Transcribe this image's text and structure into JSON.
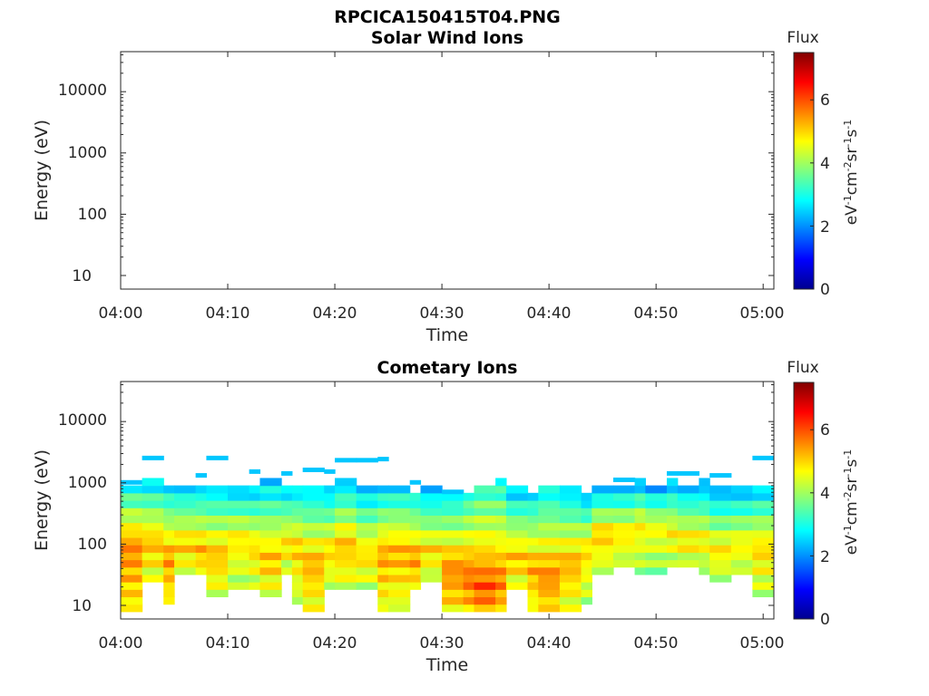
{
  "figure": {
    "title": "RPCICA150415T04.PNG"
  },
  "chart_data": [
    {
      "type": "heatmap",
      "title": "Solar Wind Ions",
      "xlabel": "Time",
      "ylabel": "Energy (eV)",
      "x_ticks": [
        "04:00",
        "04:10",
        "04:20",
        "04:30",
        "04:40",
        "04:50",
        "05:00"
      ],
      "y_ticks": [
        "10",
        "100",
        "1000",
        "10000"
      ],
      "y_scale": "log",
      "x_range": [
        "04:00",
        "05:01"
      ],
      "y_range": [
        6,
        45000
      ],
      "colorbar": {
        "label": "Flux",
        "unit": "eV-1cm-2sr-1s-1",
        "range": [
          0,
          7.5
        ],
        "ticks": [
          "0",
          "2",
          "4",
          "6"
        ],
        "colormap": "jet"
      },
      "cells": []
    },
    {
      "type": "heatmap",
      "title": "Cometary Ions",
      "xlabel": "Time",
      "ylabel": "Energy (eV)",
      "x_ticks": [
        "04:00",
        "04:10",
        "04:20",
        "04:30",
        "04:40",
        "04:50",
        "05:00"
      ],
      "y_ticks": [
        "10",
        "100",
        "1000",
        "10000"
      ],
      "y_scale": "log",
      "x_range": [
        "04:00",
        "05:01"
      ],
      "y_range": [
        6,
        45000
      ],
      "colorbar": {
        "label": "Flux",
        "unit": "eV-1cm-2sr-1s-1",
        "range": [
          0,
          7.5
        ],
        "ticks": [
          "0",
          "2",
          "4",
          "6"
        ],
        "colormap": "jet"
      },
      "columns": [
        {
          "t": "04:00",
          "lo": 8,
          "hi": 900,
          "peak": 90,
          "max": 5.6,
          "top": [
            1000
          ]
        },
        {
          "t": "04:02",
          "lo": 24,
          "hi": 1200,
          "peak": 110,
          "max": 5.2,
          "top": [
            2500
          ]
        },
        {
          "t": "04:04",
          "lo": 10,
          "hi": 800,
          "peak": 60,
          "max": 5.5,
          "top": []
        },
        {
          "t": "04:05",
          "lo": 28,
          "hi": 1000,
          "peak": 100,
          "max": 5.1,
          "top": []
        },
        {
          "t": "04:07",
          "lo": 28,
          "hi": 900,
          "peak": 80,
          "max": 5.3,
          "top": [
            1300
          ]
        },
        {
          "t": "04:08",
          "lo": 14,
          "hi": 1000,
          "peak": 70,
          "max": 5.2,
          "top": [
            2500
          ]
        },
        {
          "t": "04:10",
          "lo": 20,
          "hi": 1000,
          "peak": 120,
          "max": 4.9,
          "top": []
        },
        {
          "t": "04:12",
          "lo": 18,
          "hi": 1000,
          "peak": 90,
          "max": 5.0,
          "top": [
            1500
          ]
        },
        {
          "t": "04:13",
          "lo": 14,
          "hi": 1100,
          "peak": 60,
          "max": 5.2,
          "top": []
        },
        {
          "t": "04:15",
          "lo": 34,
          "hi": 1000,
          "peak": 100,
          "max": 5.0,
          "top": [
            1400
          ]
        },
        {
          "t": "04:16",
          "lo": 12,
          "hi": 1000,
          "peak": 90,
          "max": 5.1,
          "top": []
        },
        {
          "t": "04:17",
          "lo": 7,
          "hi": 900,
          "peak": 50,
          "max": 5.3,
          "top": [
            1600
          ]
        },
        {
          "t": "04:19",
          "lo": 18,
          "hi": 1000,
          "peak": 80,
          "max": 5.0,
          "top": [
            1500
          ]
        },
        {
          "t": "04:20",
          "lo": 18,
          "hi": 1100,
          "peak": 100,
          "max": 5.2,
          "top": [
            2300
          ]
        },
        {
          "t": "04:22",
          "lo": 18,
          "hi": 1000,
          "peak": 70,
          "max": 5.0,
          "top": [
            2300
          ]
        },
        {
          "t": "04:24",
          "lo": 9,
          "hi": 800,
          "peak": 70,
          "max": 5.4,
          "top": [
            2400
          ]
        },
        {
          "t": "04:25",
          "lo": 9,
          "hi": 900,
          "peak": 80,
          "max": 5.3,
          "top": []
        },
        {
          "t": "04:27",
          "lo": 18,
          "hi": 700,
          "peak": 60,
          "max": 5.5,
          "top": [
            1000
          ]
        },
        {
          "t": "04:28",
          "lo": 24,
          "hi": 900,
          "peak": 80,
          "max": 5.0,
          "top": []
        },
        {
          "t": "04:30",
          "lo": 7,
          "hi": 600,
          "peak": 40,
          "max": 5.6,
          "top": [
            700
          ]
        },
        {
          "t": "04:32",
          "lo": 7,
          "hi": 700,
          "peak": 30,
          "max": 5.8,
          "top": []
        },
        {
          "t": "04:33",
          "lo": 7,
          "hi": 800,
          "peak": 20,
          "max": 6.0,
          "top": []
        },
        {
          "t": "04:35",
          "lo": 7,
          "hi": 1200,
          "peak": 25,
          "max": 5.7,
          "top": []
        },
        {
          "t": "04:36",
          "lo": 18,
          "hi": 800,
          "peak": 60,
          "max": 5.2,
          "top": []
        },
        {
          "t": "04:38",
          "lo": 9,
          "hi": 700,
          "peak": 40,
          "max": 5.4,
          "top": []
        },
        {
          "t": "04:39",
          "lo": 7,
          "hi": 800,
          "peak": 30,
          "max": 5.6,
          "top": []
        },
        {
          "t": "04:41",
          "lo": 9,
          "hi": 800,
          "peak": 50,
          "max": 5.3,
          "top": []
        },
        {
          "t": "04:43",
          "lo": 12,
          "hi": 700,
          "peak": 80,
          "max": 5.0,
          "top": []
        },
        {
          "t": "04:44",
          "lo": 35,
          "hi": 800,
          "peak": 150,
          "max": 5.1,
          "top": []
        },
        {
          "t": "04:46",
          "lo": 40,
          "hi": 1000,
          "peak": 150,
          "max": 4.9,
          "top": [
            1100
          ]
        },
        {
          "t": "04:48",
          "lo": 30,
          "hi": 1200,
          "peak": 200,
          "max": 4.8,
          "top": []
        },
        {
          "t": "04:49",
          "lo": 35,
          "hi": 1000,
          "peak": 180,
          "max": 4.7,
          "top": []
        },
        {
          "t": "04:51",
          "lo": 40,
          "hi": 1300,
          "peak": 150,
          "max": 4.8,
          "top": [
            1400
          ]
        },
        {
          "t": "04:52",
          "lo": 40,
          "hi": 1000,
          "peak": 120,
          "max": 4.9,
          "top": [
            1400
          ]
        },
        {
          "t": "04:54",
          "lo": 35,
          "hi": 1200,
          "peak": 120,
          "max": 4.8,
          "top": []
        },
        {
          "t": "04:55",
          "lo": 25,
          "hi": 900,
          "peak": 80,
          "max": 4.9,
          "top": [
            1300
          ]
        },
        {
          "t": "04:57",
          "lo": 28,
          "hi": 1000,
          "peak": 100,
          "max": 4.8,
          "top": []
        },
        {
          "t": "04:59",
          "lo": 14,
          "hi": 1000,
          "peak": 90,
          "max": 5.0,
          "top": [
            2500
          ]
        }
      ]
    }
  ]
}
